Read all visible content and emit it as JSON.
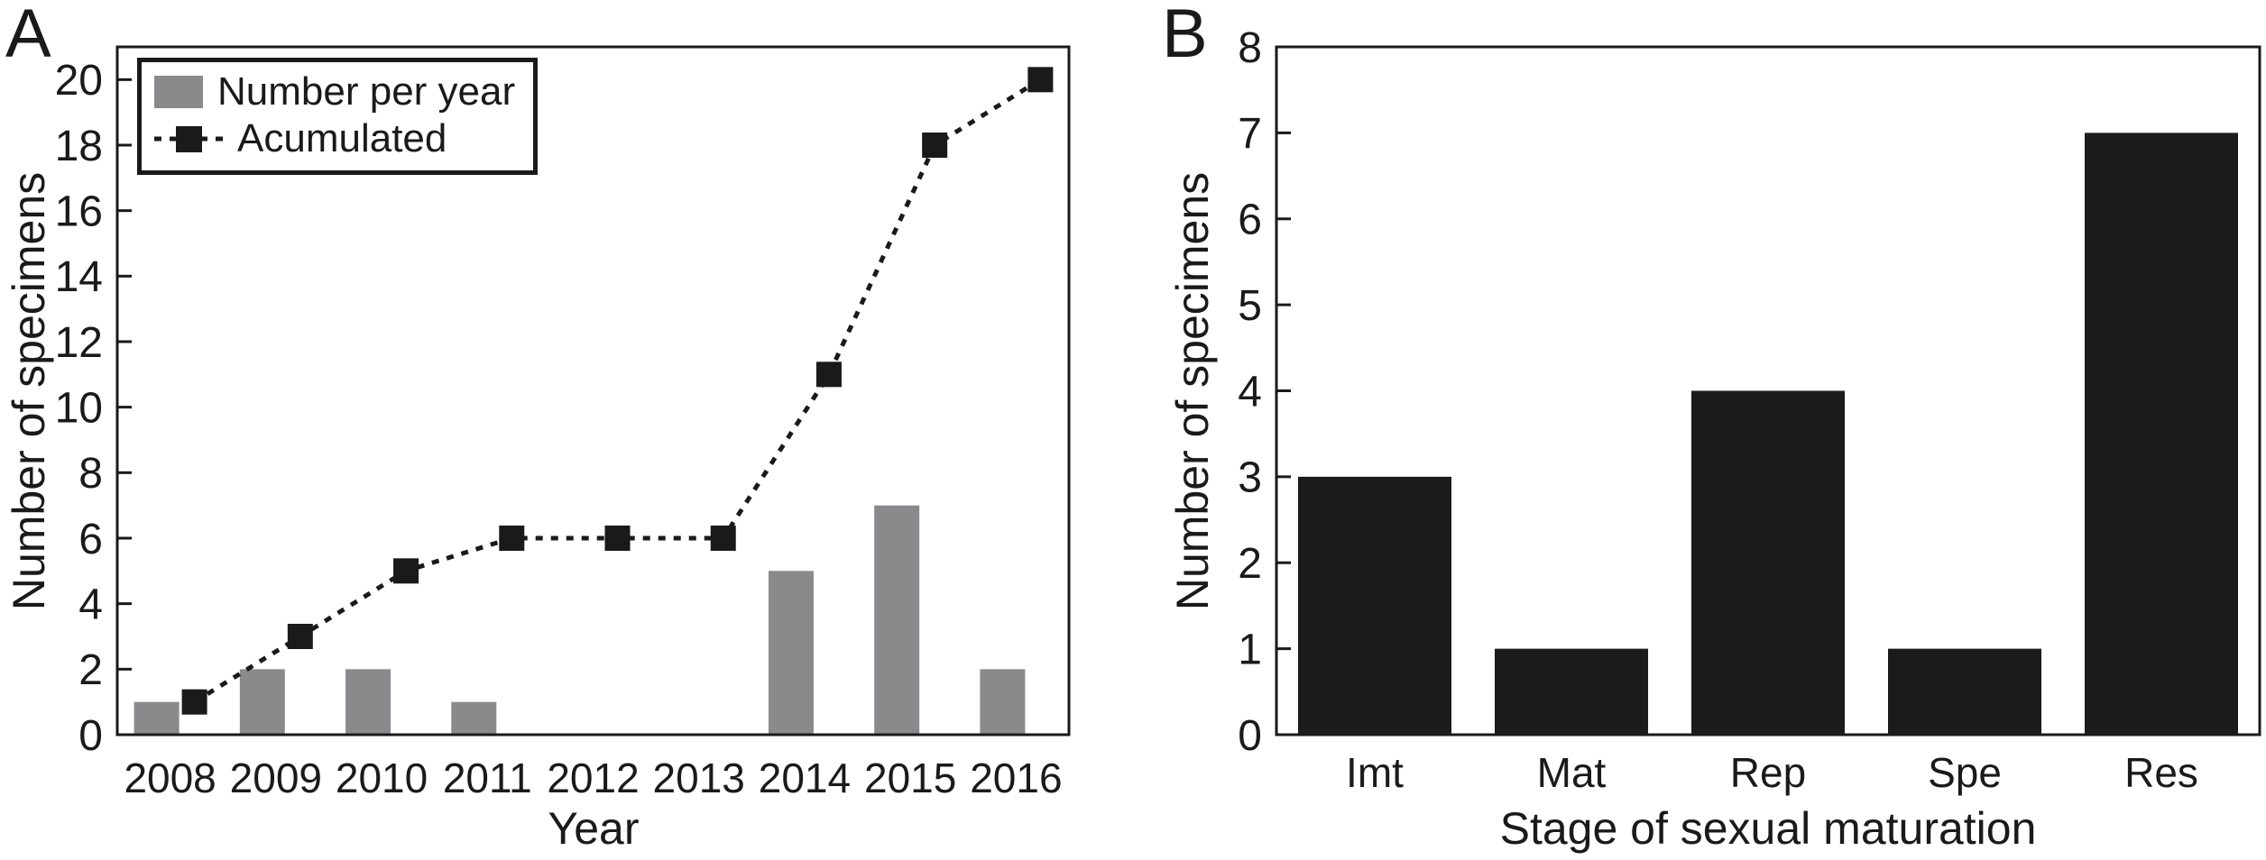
{
  "figure": {
    "background": "#ffffff",
    "text_color": "#1a1a1a",
    "panels": [
      {
        "letter": "A"
      },
      {
        "letter": "B"
      }
    ]
  },
  "legend": {
    "position": "top-left",
    "entries": [
      {
        "label": "Number per year",
        "swatch": "gray-filled-rect"
      },
      {
        "label": "Acumulated",
        "swatch": "dotted-line-with-filled-square-marker"
      }
    ]
  },
  "chart_data": [
    {
      "panel": "A",
      "type": "bar+line",
      "categories": [
        "2008",
        "2009",
        "2010",
        "2011",
        "2012",
        "2013",
        "2014",
        "2015",
        "2016"
      ],
      "series": [
        {
          "name": "Number per year",
          "type": "bar",
          "color": "#8a8a8d",
          "values": [
            1,
            2,
            2,
            1,
            0,
            0,
            5,
            7,
            2
          ]
        },
        {
          "name": "Acumulated",
          "type": "line",
          "color": "#1a1a1a",
          "linestyle": "dotted",
          "marker": "filled-square",
          "values": [
            1,
            3,
            5,
            6,
            6,
            6,
            11,
            18,
            20
          ]
        }
      ],
      "xlabel": "Year",
      "ylabel": "Number of specimens",
      "ylim": [
        0,
        21
      ],
      "yticks": [
        0,
        2,
        4,
        6,
        8,
        10,
        12,
        14,
        16,
        18,
        20
      ],
      "grid": false,
      "legend_position": "top-left",
      "frame": "full-box"
    },
    {
      "panel": "B",
      "type": "bar",
      "categories": [
        "Imt",
        "Mat",
        "Rep",
        "Spe",
        "Res"
      ],
      "values": [
        3,
        1,
        4,
        1,
        7
      ],
      "bar_color": "#1b1b1b",
      "xlabel": "Stage of sexual maturation",
      "ylabel": "Number of specimens",
      "ylim": [
        0,
        8
      ],
      "yticks": [
        0,
        1,
        2,
        3,
        4,
        5,
        6,
        7,
        8
      ],
      "grid": false,
      "frame": "full-box"
    }
  ]
}
